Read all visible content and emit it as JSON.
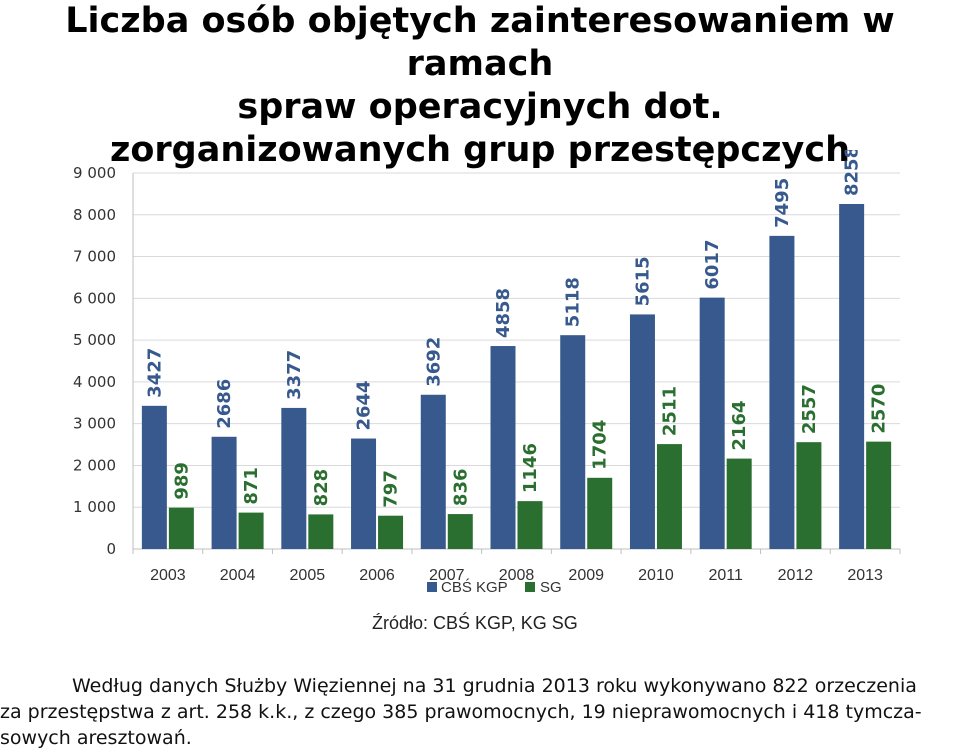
{
  "title": {
    "line1": "Liczba osób objętych zainteresowaniem w ramach",
    "line2": "spraw operacyjnych dot.",
    "line3": "zorganizowanych grup przestępczych"
  },
  "chart_data": {
    "type": "bar",
    "categories": [
      "2003",
      "2004",
      "2005",
      "2006",
      "2007",
      "2008",
      "2009",
      "2010",
      "2011",
      "2012",
      "2013"
    ],
    "series": [
      {
        "name": "CBŚ KGP",
        "color": "#37598d",
        "values": [
          3427,
          2686,
          3377,
          2644,
          3692,
          4858,
          5118,
          5615,
          6017,
          7495,
          8258
        ]
      },
      {
        "name": "SG",
        "color": "#2a6e30",
        "values": [
          989,
          871,
          828,
          797,
          836,
          1146,
          1704,
          2511,
          2164,
          2557,
          2570
        ]
      }
    ],
    "ylim": [
      0,
      9000
    ],
    "yticks": [
      0,
      1000,
      2000,
      3000,
      4000,
      5000,
      6000,
      7000,
      8000,
      9000
    ],
    "ytick_labels": [
      "0",
      "1 000",
      "2 000",
      "3 000",
      "4 000",
      "5 000",
      "6 000",
      "7 000",
      "8 000",
      "9 000"
    ],
    "grid": true,
    "legend_position": "bottom",
    "data_labels": "vertical, above bars"
  },
  "source": "Źródło: CBŚ KGP, KG SG",
  "footnote": {
    "line1": "Według danych Służby Więziennej na 31 grudnia 2013 roku wykonywano 822 orzeczenia",
    "line2": "za przestępstwa z art. 258 k.k., z czego 385 prawomocnych, 19 nieprawomocnych i 418 tymcza-",
    "line3": "sowych aresztowań."
  }
}
